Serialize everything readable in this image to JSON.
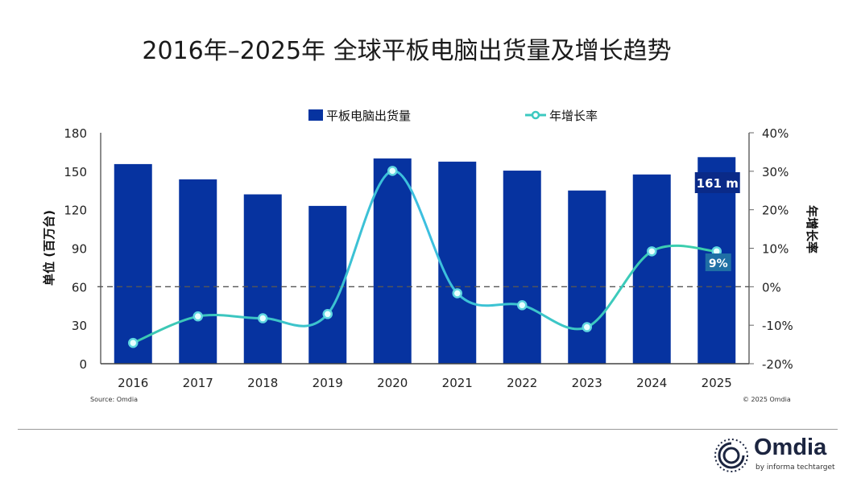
{
  "chart_data": {
    "type": "bar+line",
    "title": "2016年–2025年 全球平板电脑出货量及增长趋势",
    "categories": [
      "2016",
      "2017",
      "2018",
      "2019",
      "2020",
      "2021",
      "2022",
      "2023",
      "2024",
      "2025"
    ],
    "series": [
      {
        "name": "平板电脑出货量",
        "type": "bar",
        "axis": "left",
        "color": "#0633a0",
        "values": [
          155.6,
          143.7,
          132,
          123,
          160,
          157.5,
          150.5,
          135,
          147.5,
          161
        ]
      },
      {
        "name": "年增长率",
        "type": "line",
        "axis": "right",
        "color": "#3cc9c0",
        "values": [
          -14.6,
          -7.7,
          -8.2,
          -7.1,
          30.1,
          -1.7,
          -4.8,
          -10.5,
          9.2,
          9.2
        ]
      }
    ],
    "ylabel": "单位 (百万台)",
    "ylim": [
      0,
      180
    ],
    "yticks": [
      "0",
      "30",
      "60",
      "90",
      "120",
      "150",
      "180"
    ],
    "y2label": "年增长率",
    "y2lim": [
      -20,
      40
    ],
    "y2ticks": [
      "-20%",
      "-10%",
      "0%",
      "10%",
      "20%",
      "30%",
      "40%"
    ],
    "zero_reference_line": "dashed at 0%",
    "annotations": [
      "161 m",
      "9%"
    ],
    "legend_placement": "top",
    "grid": false
  },
  "footer": {
    "source": "Source: Omdia",
    "copyright": "© 2025 Omdia"
  },
  "logo": {
    "word": "Omdia",
    "sub": "by informa techtarget"
  }
}
